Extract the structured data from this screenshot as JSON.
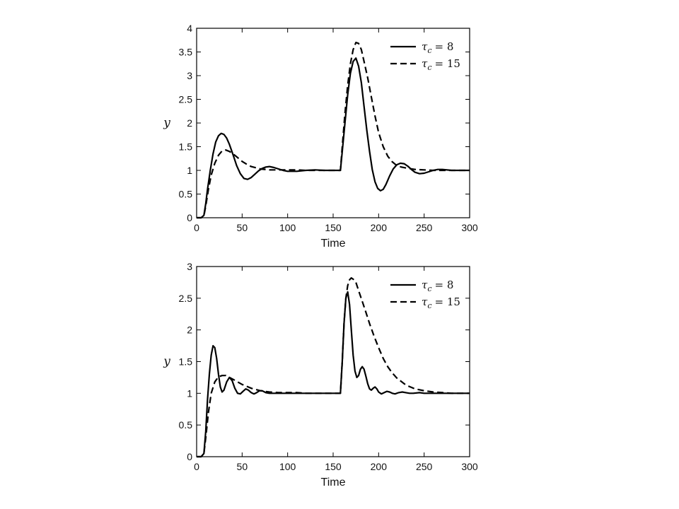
{
  "chart_data": [
    {
      "type": "line",
      "xlabel": "Time",
      "ylabel": "y",
      "xlim": [
        0,
        300
      ],
      "ylim": [
        0,
        4
      ],
      "xticks": [
        0,
        50,
        100,
        150,
        200,
        250,
        300
      ],
      "yticks": [
        0,
        0.5,
        1,
        1.5,
        2,
        2.5,
        3,
        3.5,
        4
      ],
      "ytick_labels": [
        "0",
        "0.5",
        "1",
        "1.5",
        "2",
        "2.5",
        "3",
        "3.5",
        "4"
      ],
      "grid": false,
      "legend_position": "top-right",
      "series": [
        {
          "name": "τc = 8",
          "legend_symbol": "τ",
          "legend_subscript": "c",
          "legend_value": "= 8",
          "style": "solid",
          "x": [
            0,
            5,
            8,
            10,
            12,
            15,
            18,
            21,
            24,
            27,
            30,
            33,
            36,
            40,
            44,
            48,
            52,
            56,
            60,
            64,
            68,
            72,
            76,
            80,
            85,
            90,
            95,
            100,
            110,
            120,
            130,
            140,
            150,
            158,
            160,
            163,
            166,
            169,
            172,
            175,
            178,
            181,
            184,
            187,
            190,
            193,
            196,
            199,
            202,
            205,
            208,
            212,
            216,
            220,
            224,
            228,
            232,
            236,
            240,
            245,
            250,
            255,
            260,
            265,
            270,
            280,
            290,
            300
          ],
          "y": [
            0,
            0,
            0.05,
            0.3,
            0.6,
            1.0,
            1.35,
            1.6,
            1.73,
            1.78,
            1.76,
            1.68,
            1.55,
            1.33,
            1.1,
            0.93,
            0.83,
            0.81,
            0.85,
            0.92,
            0.99,
            1.04,
            1.07,
            1.08,
            1.06,
            1.03,
            1.0,
            0.98,
            0.98,
            1.0,
            1.01,
            1.0,
            1.0,
            1.0,
            1.4,
            2.0,
            2.6,
            3.05,
            3.3,
            3.37,
            3.2,
            2.85,
            2.35,
            1.85,
            1.4,
            1.02,
            0.76,
            0.62,
            0.57,
            0.6,
            0.7,
            0.88,
            1.03,
            1.12,
            1.15,
            1.14,
            1.09,
            1.02,
            0.96,
            0.93,
            0.94,
            0.97,
            1.0,
            1.02,
            1.02,
            1.0,
            1.0,
            1.0
          ]
        },
        {
          "name": "τc = 15",
          "legend_symbol": "τ",
          "legend_subscript": "c",
          "legend_value": "= 15",
          "style": "dashed",
          "x": [
            0,
            5,
            8,
            10,
            13,
            16,
            20,
            24,
            28,
            32,
            36,
            40,
            45,
            50,
            55,
            60,
            70,
            80,
            90,
            100,
            110,
            120,
            130,
            140,
            150,
            158,
            160,
            163,
            166,
            169,
            172,
            175,
            178,
            181,
            184,
            188,
            192,
            196,
            200,
            205,
            210,
            215,
            220,
            225,
            230,
            240,
            250,
            260,
            270,
            280,
            290,
            300
          ],
          "y": [
            0,
            0,
            0.04,
            0.25,
            0.6,
            0.9,
            1.15,
            1.32,
            1.41,
            1.43,
            1.4,
            1.35,
            1.27,
            1.19,
            1.13,
            1.08,
            1.03,
            1.01,
            1.01,
            1.01,
            1.01,
            1.0,
            1.0,
            1.0,
            1.0,
            1.0,
            1.5,
            2.2,
            2.8,
            3.25,
            3.55,
            3.7,
            3.68,
            3.55,
            3.3,
            2.95,
            2.55,
            2.15,
            1.8,
            1.5,
            1.3,
            1.18,
            1.1,
            1.07,
            1.05,
            1.02,
            1.01,
            1.0,
            1.0,
            1.0,
            1.0,
            1.0
          ]
        }
      ]
    },
    {
      "type": "line",
      "xlabel": "Time",
      "ylabel": "y",
      "xlim": [
        0,
        300
      ],
      "ylim": [
        0,
        3
      ],
      "xticks": [
        0,
        50,
        100,
        150,
        200,
        250,
        300
      ],
      "yticks": [
        0,
        0.5,
        1,
        1.5,
        2,
        2.5,
        3
      ],
      "ytick_labels": [
        "0",
        "0.5",
        "1",
        "1.5",
        "2",
        "2.5",
        "3"
      ],
      "grid": false,
      "legend_position": "top-right",
      "series": [
        {
          "name": "τc = 8",
          "legend_symbol": "τ",
          "legend_subscript": "c",
          "legend_value": "= 8",
          "style": "solid",
          "x": [
            0,
            5,
            8,
            10,
            12,
            14,
            16,
            18,
            20,
            22,
            24,
            26,
            28,
            30,
            33,
            36,
            39,
            42,
            45,
            48,
            51,
            54,
            57,
            60,
            63,
            66,
            69,
            72,
            76,
            80,
            85,
            90,
            100,
            110,
            120,
            130,
            140,
            150,
            158,
            160,
            162,
            164,
            166,
            168,
            170,
            172,
            174,
            176,
            178,
            180,
            182,
            184,
            186,
            188,
            190,
            192,
            194,
            196,
            198,
            200,
            203,
            206,
            209,
            212,
            215,
            218,
            222,
            226,
            230,
            234,
            238,
            245,
            250,
            260,
            270,
            280,
            300
          ],
          "y": [
            0,
            0,
            0.05,
            0.4,
            0.9,
            1.3,
            1.6,
            1.75,
            1.72,
            1.55,
            1.3,
            1.1,
            1.02,
            1.05,
            1.18,
            1.25,
            1.2,
            1.08,
            1.0,
            0.99,
            1.03,
            1.07,
            1.05,
            1.01,
            0.99,
            1.01,
            1.04,
            1.04,
            1.01,
            1.0,
            1.0,
            1.0,
            1.0,
            1.0,
            1.0,
            1.0,
            1.0,
            1.0,
            1.0,
            1.5,
            2.1,
            2.5,
            2.6,
            2.4,
            2.0,
            1.6,
            1.35,
            1.25,
            1.28,
            1.38,
            1.42,
            1.38,
            1.27,
            1.15,
            1.07,
            1.05,
            1.08,
            1.1,
            1.07,
            1.02,
            0.99,
            1.01,
            1.03,
            1.02,
            1.0,
            0.99,
            1.01,
            1.02,
            1.01,
            1.0,
            1.0,
            1.01,
            1.0,
            1.0,
            1.0,
            1.0,
            1.0
          ]
        },
        {
          "name": "τc = 15",
          "legend_symbol": "τ",
          "legend_subscript": "c",
          "legend_value": "= 15",
          "style": "dashed",
          "x": [
            0,
            5,
            8,
            10,
            13,
            16,
            20,
            24,
            28,
            32,
            36,
            40,
            45,
            50,
            55,
            60,
            70,
            80,
            90,
            100,
            110,
            120,
            130,
            140,
            150,
            158,
            160,
            162,
            164,
            166,
            168,
            170,
            172,
            175,
            178,
            182,
            186,
            190,
            195,
            200,
            205,
            210,
            215,
            220,
            230,
            240,
            250,
            260,
            270,
            280,
            290,
            300
          ],
          "y": [
            0,
            0,
            0.05,
            0.3,
            0.7,
            1.0,
            1.18,
            1.26,
            1.28,
            1.28,
            1.25,
            1.22,
            1.18,
            1.14,
            1.11,
            1.08,
            1.04,
            1.02,
            1.01,
            1.01,
            1.01,
            1.0,
            1.0,
            1.0,
            1.0,
            1.0,
            1.5,
            2.1,
            2.5,
            2.7,
            2.79,
            2.82,
            2.8,
            2.75,
            2.62,
            2.45,
            2.28,
            2.1,
            1.9,
            1.72,
            1.55,
            1.42,
            1.32,
            1.24,
            1.13,
            1.07,
            1.04,
            1.02,
            1.01,
            1.0,
            1.0,
            1.0
          ]
        }
      ]
    }
  ]
}
